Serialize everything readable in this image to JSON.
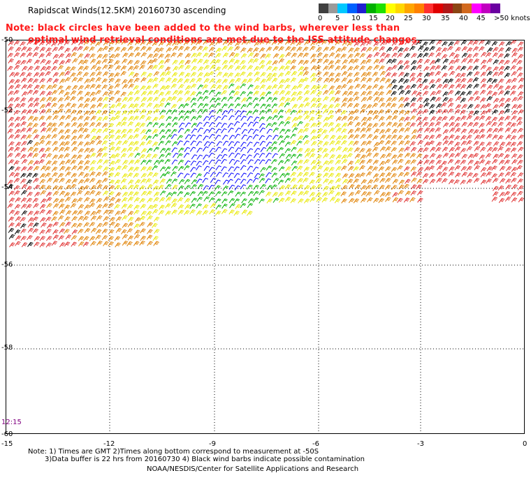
{
  "title": "Rapidscat Winds(12.5KM) 20160730 ascending",
  "notes": {
    "line1": "Note: black circles have been added to the wind barbs, wherever less than",
    "line2": "optimal wind retrieval conditions are met due to the ISS attitude changes."
  },
  "legend": {
    "labels": [
      "0",
      "5",
      "10",
      "15",
      "20",
      "25",
      "30",
      "35",
      "40",
      "45",
      ">50 knots"
    ],
    "colors": [
      "#404040",
      "#9a9a9a",
      "#00c8ff",
      "#0060ff",
      "#2020d0",
      "#00b000",
      "#20e000",
      "#ffff00",
      "#ffd700",
      "#ffa500",
      "#ff8000",
      "#ff3030",
      "#e00000",
      "#b01818",
      "#8b4513",
      "#d2691e",
      "#ff00ff",
      "#c000c0",
      "#6a00a0"
    ]
  },
  "map": {
    "lat_labels": [
      "-50",
      "-52",
      "-54",
      "-56",
      "-58",
      "-60"
    ],
    "lon_labels": [
      "-15",
      "-12",
      "-9",
      "-6",
      "-3",
      "0"
    ],
    "time_label": "12:15",
    "colors": {
      "time_label": "#800080",
      "calm": "#0000ff",
      "light": "#00b000",
      "moderate": "#e8e800",
      "fresh": "#e08000",
      "strong": "#e03030",
      "flagged": "#000000"
    }
  },
  "footer": {
    "line1": "Note: 1) Times are GMT 2)Times along bottom correspond to measurement at -50S",
    "line2": "3)Data buffer is 22 hrs from 20160730 4) Black wind barbs indicate possible contamination",
    "line3": "NOAA/NESDIS/Center for Satellite Applications and Research"
  }
}
